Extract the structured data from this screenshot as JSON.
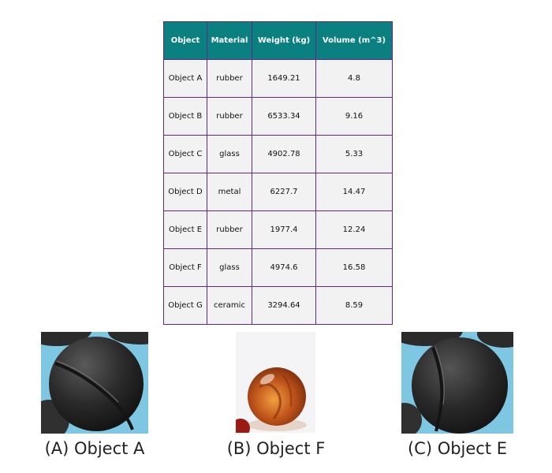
{
  "table": {
    "headers": [
      "Object",
      "Material",
      "Weight (kg)",
      "Volume (m^3)"
    ],
    "rows": [
      [
        "Object A",
        "rubber",
        "1649.21",
        "4.8"
      ],
      [
        "Object B",
        "rubber",
        "6533.34",
        "9.16"
      ],
      [
        "Object C",
        "glass",
        "4902.78",
        "5.33"
      ],
      [
        "Object D",
        "metal",
        "6227.7",
        "14.47"
      ],
      [
        "Object E",
        "rubber",
        "1977.4",
        "12.24"
      ],
      [
        "Object F",
        "glass",
        "4974.6",
        "16.58"
      ],
      [
        "Object G",
        "ceramic",
        "3294.64",
        "8.59"
      ]
    ]
  },
  "options": [
    {
      "caption": "(A) Object A",
      "image": "black-rubber-ball-photo"
    },
    {
      "caption": "(B) Object F",
      "image": "orange-glass-marble-photo"
    },
    {
      "caption": "(C) Object E",
      "image": "black-rubber-ball-photo"
    }
  ],
  "colors": {
    "header_bg": "#0b8080",
    "cell_bg": "#f2f2f2",
    "border": "#5b2a86"
  }
}
